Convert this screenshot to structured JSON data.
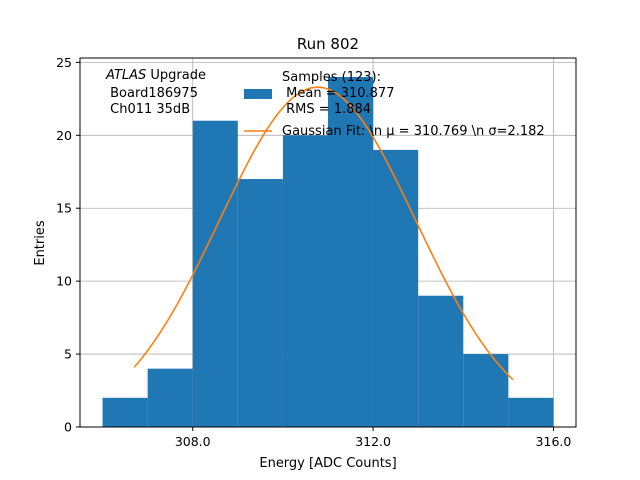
{
  "chart_data": {
    "type": "bar",
    "title": "Run 802",
    "xlabel": "Energy [ADC Counts]",
    "ylabel": "Entries",
    "xlim": [
      305.5,
      316.5
    ],
    "ylim": [
      0,
      25.3
    ],
    "xticks": [
      308,
      312,
      316
    ],
    "xtick_labels": [
      "308.0",
      "312.0",
      "316.0"
    ],
    "yticks": [
      0,
      5,
      10,
      15,
      20,
      25
    ],
    "ytick_labels": [
      "0",
      "5",
      "10",
      "15",
      "20",
      "25"
    ],
    "grid": true,
    "bar_color": "#1f77b4",
    "line_color": "#ff7f0e",
    "histogram": {
      "bin_edges": [
        306,
        307,
        308,
        309,
        310,
        311,
        312,
        313,
        314,
        315,
        316
      ],
      "counts": [
        2,
        4,
        21,
        17,
        20,
        24,
        19,
        9,
        5,
        2
      ]
    },
    "fit": {
      "mu": 310.769,
      "sigma": 2.182,
      "amplitude": 23.3,
      "x_range": [
        306.7,
        315.1
      ]
    },
    "annotation": {
      "line1_italic": "ATLAS",
      "line1_rest": " Upgrade",
      "line2": " Board186975",
      "line3": " Ch011 35dB"
    },
    "legend": {
      "position": "top-right",
      "hist_label_line1": "Samples (123):",
      "hist_label_line2": " Mean = 310.877",
      "hist_label_line3": " RMS = 1.884",
      "fit_label": "Gaussian Fit: \\n μ = 310.769 \\n σ=2.182"
    }
  }
}
